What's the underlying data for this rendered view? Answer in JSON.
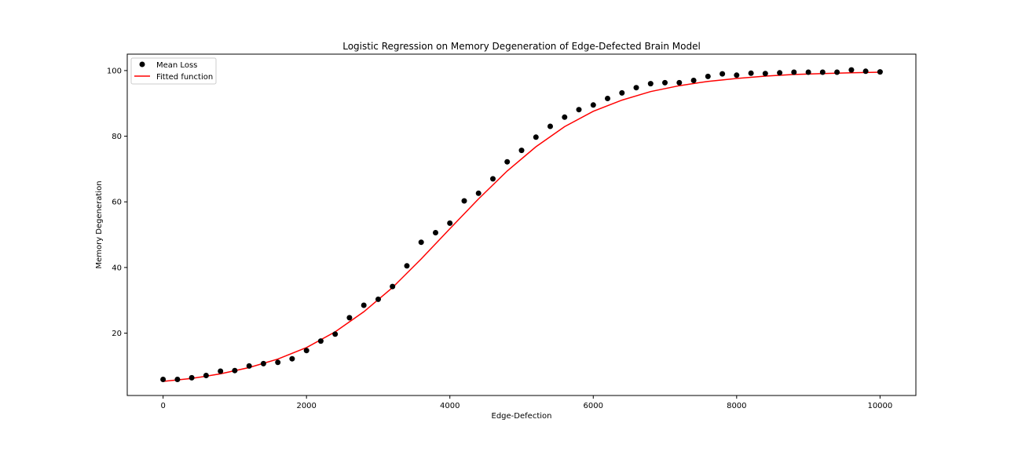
{
  "chart_data": {
    "type": "scatter",
    "title": "Logistic Regression on Memory Degeneration of Edge-Defected Brain Model",
    "xlabel": "Edge-Defection",
    "ylabel": "Memory Degeneration",
    "xlim": [
      -500,
      10500
    ],
    "ylim": [
      1,
      105
    ],
    "xticks": [
      0,
      2000,
      4000,
      6000,
      8000,
      10000
    ],
    "yticks": [
      20,
      40,
      60,
      80,
      100
    ],
    "grid": false,
    "legend_position": "top-left",
    "series": [
      {
        "name": "Mean Loss",
        "kind": "scatter",
        "color": "#000000",
        "x": [
          0,
          200,
          400,
          600,
          800,
          1000,
          1200,
          1400,
          1600,
          1800,
          2000,
          2200,
          2400,
          2600,
          2800,
          3000,
          3200,
          3400,
          3600,
          3800,
          4000,
          4200,
          4400,
          4600,
          4800,
          5000,
          5200,
          5400,
          5600,
          5800,
          6000,
          6200,
          6400,
          6600,
          6800,
          7000,
          7200,
          7400,
          7600,
          7800,
          8000,
          8200,
          8400,
          8600,
          8800,
          9000,
          9200,
          9400,
          9600,
          9800,
          10000
        ],
        "y": [
          5.9,
          5.9,
          6.4,
          7.1,
          8.4,
          8.6,
          10.0,
          10.7,
          11.1,
          12.2,
          14.7,
          17.6,
          19.7,
          24.7,
          28.5,
          30.3,
          34.2,
          40.5,
          47.7,
          50.6,
          53.5,
          60.3,
          62.6,
          67.0,
          72.2,
          75.7,
          79.7,
          83.0,
          85.8,
          88.1,
          89.5,
          91.5,
          93.2,
          94.8,
          96.0,
          96.3,
          96.3,
          97.0,
          98.2,
          99.0,
          98.6,
          99.2,
          99.1,
          99.3,
          99.5,
          99.5,
          99.5,
          99.5,
          100.2,
          99.8,
          99.6
        ]
      },
      {
        "name": "Fitted function",
        "kind": "line",
        "color": "#ff0000",
        "x": [
          0,
          400,
          800,
          1200,
          1600,
          2000,
          2400,
          2800,
          3200,
          3600,
          4000,
          4400,
          4800,
          5200,
          5600,
          6000,
          6400,
          6800,
          7200,
          7600,
          8000,
          8400,
          8800,
          9200,
          9600,
          10000
        ],
        "y": [
          5.3,
          6.2,
          7.6,
          9.5,
          12.1,
          15.6,
          20.4,
          26.5,
          33.9,
          42.6,
          51.8,
          60.9,
          69.4,
          76.8,
          82.9,
          87.6,
          91.0,
          93.6,
          95.4,
          96.7,
          97.6,
          98.3,
          98.8,
          99.1,
          99.3,
          99.5
        ]
      }
    ]
  }
}
